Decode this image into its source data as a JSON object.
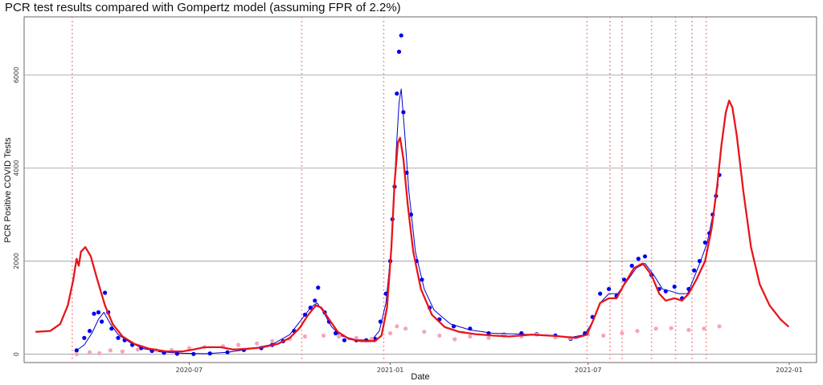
{
  "chart_data": {
    "type": "line",
    "title": "PCR test results compared with Gompertz model (assuming FPR of 2.2%)",
    "xlabel": "Date",
    "ylabel": "PCR Positive COVID Tests",
    "xlim": [
      "2020-02-01",
      "2022-01-26"
    ],
    "ylim": [
      -180,
      7250
    ],
    "x_ticks": [
      {
        "date": "2020-07-01",
        "label": "2020-07"
      },
      {
        "date": "2021-01-01",
        "label": "2021-01"
      },
      {
        "date": "2021-07-01",
        "label": "2021-07"
      },
      {
        "date": "2022-01-01",
        "label": "2022-01"
      }
    ],
    "y_ticks": [
      0,
      2000,
      4000,
      6000
    ],
    "grid": "horizontal",
    "legend": "none",
    "vlines": {
      "color": "#ee7a7a",
      "style": "dotted",
      "dates": [
        "2020-03-16",
        "2020-10-12",
        "2020-12-26",
        "2021-06-30",
        "2021-07-21",
        "2021-08-01",
        "2021-08-28",
        "2021-09-19",
        "2021-10-04",
        "2021-10-17"
      ]
    },
    "series": [
      {
        "kind": "points",
        "color": "#0000ee",
        "data": [
          [
            "2020-03-20",
            80
          ],
          [
            "2020-03-27",
            350
          ],
          [
            "2020-04-01",
            500
          ],
          [
            "2020-04-05",
            870
          ],
          [
            "2020-04-09",
            900
          ],
          [
            "2020-04-12",
            700
          ],
          [
            "2020-04-15",
            1320
          ],
          [
            "2020-04-18",
            900
          ],
          [
            "2020-04-21",
            550
          ],
          [
            "2020-04-27",
            350
          ],
          [
            "2020-05-03",
            300
          ],
          [
            "2020-05-10",
            200
          ],
          [
            "2020-05-18",
            130
          ],
          [
            "2020-05-28",
            70
          ],
          [
            "2020-06-08",
            30
          ],
          [
            "2020-06-20",
            10
          ],
          [
            "2020-07-05",
            5
          ],
          [
            "2020-07-20",
            15
          ],
          [
            "2020-08-05",
            40
          ],
          [
            "2020-08-20",
            90
          ],
          [
            "2020-09-05",
            130
          ],
          [
            "2020-09-15",
            200
          ],
          [
            "2020-09-25",
            280
          ],
          [
            "2020-10-05",
            500
          ],
          [
            "2020-10-15",
            850
          ],
          [
            "2020-10-20",
            1000
          ],
          [
            "2020-10-24",
            1150
          ],
          [
            "2020-10-27",
            1430
          ],
          [
            "2020-11-02",
            900
          ],
          [
            "2020-11-06",
            700
          ],
          [
            "2020-11-12",
            450
          ],
          [
            "2020-11-20",
            300
          ],
          [
            "2020-12-01",
            300
          ],
          [
            "2020-12-10",
            300
          ],
          [
            "2020-12-18",
            330
          ],
          [
            "2020-12-23",
            700
          ],
          [
            "2020-12-28",
            1300
          ],
          [
            "2021-01-01",
            2000
          ],
          [
            "2021-01-03",
            2900
          ],
          [
            "2021-01-05",
            3600
          ],
          [
            "2021-01-07",
            5600
          ],
          [
            "2021-01-09",
            6500
          ],
          [
            "2021-01-11",
            6850
          ],
          [
            "2021-01-13",
            5200
          ],
          [
            "2021-01-16",
            3900
          ],
          [
            "2021-01-20",
            3000
          ],
          [
            "2021-01-25",
            2000
          ],
          [
            "2021-01-30",
            1600
          ],
          [
            "2021-02-06",
            1000
          ],
          [
            "2021-02-15",
            750
          ],
          [
            "2021-02-28",
            600
          ],
          [
            "2021-03-15",
            550
          ],
          [
            "2021-04-01",
            450
          ],
          [
            "2021-04-15",
            420
          ],
          [
            "2021-05-01",
            450
          ],
          [
            "2021-05-15",
            430
          ],
          [
            "2021-06-01",
            400
          ],
          [
            "2021-06-15",
            330
          ],
          [
            "2021-06-28",
            450
          ],
          [
            "2021-07-05",
            800
          ],
          [
            "2021-07-12",
            1300
          ],
          [
            "2021-07-20",
            1400
          ],
          [
            "2021-07-27",
            1250
          ],
          [
            "2021-08-03",
            1600
          ],
          [
            "2021-08-10",
            1900
          ],
          [
            "2021-08-16",
            2050
          ],
          [
            "2021-08-22",
            2100
          ],
          [
            "2021-08-28",
            1700
          ],
          [
            "2021-09-04",
            1400
          ],
          [
            "2021-09-10",
            1350
          ],
          [
            "2021-09-18",
            1450
          ],
          [
            "2021-09-25",
            1200
          ],
          [
            "2021-10-01",
            1400
          ],
          [
            "2021-10-06",
            1800
          ],
          [
            "2021-10-11",
            2000
          ],
          [
            "2021-10-16",
            2400
          ],
          [
            "2021-10-20",
            2600
          ],
          [
            "2021-10-23",
            3000
          ],
          [
            "2021-10-26",
            3400
          ],
          [
            "2021-10-29",
            3850
          ]
        ]
      },
      {
        "kind": "line",
        "color": "#0000cc",
        "width": 1,
        "data": [
          [
            "2020-03-20",
            80
          ],
          [
            "2020-03-27",
            200
          ],
          [
            "2020-04-03",
            450
          ],
          [
            "2020-04-09",
            750
          ],
          [
            "2020-04-14",
            900
          ],
          [
            "2020-04-20",
            650
          ],
          [
            "2020-04-27",
            420
          ],
          [
            "2020-05-08",
            250
          ],
          [
            "2020-05-20",
            120
          ],
          [
            "2020-06-05",
            50
          ],
          [
            "2020-06-25",
            20
          ],
          [
            "2020-07-15",
            10
          ],
          [
            "2020-08-05",
            40
          ],
          [
            "2020-08-25",
            110
          ],
          [
            "2020-09-15",
            210
          ],
          [
            "2020-10-01",
            420
          ],
          [
            "2020-10-12",
            750
          ],
          [
            "2020-10-20",
            1000
          ],
          [
            "2020-10-26",
            1100
          ],
          [
            "2020-11-01",
            900
          ],
          [
            "2020-11-08",
            600
          ],
          [
            "2020-11-16",
            400
          ],
          [
            "2020-12-01",
            310
          ],
          [
            "2020-12-15",
            300
          ],
          [
            "2020-12-22",
            500
          ],
          [
            "2020-12-28",
            1100
          ],
          [
            "2021-01-02",
            2300
          ],
          [
            "2021-01-06",
            4200
          ],
          [
            "2021-01-09",
            5400
          ],
          [
            "2021-01-11",
            5700
          ],
          [
            "2021-01-14",
            4800
          ],
          [
            "2021-01-18",
            3500
          ],
          [
            "2021-01-24",
            2200
          ],
          [
            "2021-02-01",
            1400
          ],
          [
            "2021-02-10",
            950
          ],
          [
            "2021-02-25",
            650
          ],
          [
            "2021-03-15",
            520
          ],
          [
            "2021-04-05",
            450
          ],
          [
            "2021-05-01",
            430
          ],
          [
            "2021-05-25",
            410
          ],
          [
            "2021-06-15",
            360
          ],
          [
            "2021-06-28",
            420
          ],
          [
            "2021-07-05",
            700
          ],
          [
            "2021-07-12",
            1100
          ],
          [
            "2021-07-20",
            1300
          ],
          [
            "2021-07-28",
            1300
          ],
          [
            "2021-08-05",
            1550
          ],
          [
            "2021-08-14",
            1850
          ],
          [
            "2021-08-22",
            1950
          ],
          [
            "2021-08-30",
            1700
          ],
          [
            "2021-09-07",
            1400
          ],
          [
            "2021-09-15",
            1350
          ],
          [
            "2021-09-22",
            1300
          ],
          [
            "2021-09-30",
            1300
          ],
          [
            "2021-10-06",
            1650
          ],
          [
            "2021-10-12",
            2000
          ],
          [
            "2021-10-18",
            2400
          ],
          [
            "2021-10-24",
            3100
          ],
          [
            "2021-10-28",
            3650
          ]
        ]
      },
      {
        "kind": "points",
        "color": "#f4a6b8",
        "data": [
          [
            "2020-03-20",
            0
          ],
          [
            "2020-04-01",
            40
          ],
          [
            "2020-04-10",
            20
          ],
          [
            "2020-04-20",
            80
          ],
          [
            "2020-05-01",
            60
          ],
          [
            "2020-05-15",
            100
          ],
          [
            "2020-06-01",
            80
          ],
          [
            "2020-06-15",
            90
          ],
          [
            "2020-07-01",
            130
          ],
          [
            "2020-07-15",
            150
          ],
          [
            "2020-08-01",
            170
          ],
          [
            "2020-08-15",
            200
          ],
          [
            "2020-09-01",
            230
          ],
          [
            "2020-09-15",
            280
          ],
          [
            "2020-10-01",
            330
          ],
          [
            "2020-10-15",
            380
          ],
          [
            "2020-11-01",
            400
          ],
          [
            "2020-11-15",
            380
          ],
          [
            "2020-12-01",
            350
          ],
          [
            "2020-12-15",
            330
          ],
          [
            "2021-01-01",
            450
          ],
          [
            "2021-01-07",
            600
          ],
          [
            "2021-01-15",
            550
          ],
          [
            "2021-02-01",
            480
          ],
          [
            "2021-02-15",
            400
          ],
          [
            "2021-03-01",
            320
          ],
          [
            "2021-03-15",
            380
          ],
          [
            "2021-04-01",
            350
          ],
          [
            "2021-04-15",
            400
          ],
          [
            "2021-05-01",
            380
          ],
          [
            "2021-05-15",
            420
          ],
          [
            "2021-06-01",
            360
          ],
          [
            "2021-06-15",
            350
          ],
          [
            "2021-07-01",
            420
          ],
          [
            "2021-07-15",
            400
          ],
          [
            "2021-08-01",
            450
          ],
          [
            "2021-08-15",
            500
          ],
          [
            "2021-09-01",
            550
          ],
          [
            "2021-09-15",
            560
          ],
          [
            "2021-10-01",
            520
          ],
          [
            "2021-10-15",
            550
          ],
          [
            "2021-10-29",
            600
          ]
        ]
      },
      {
        "kind": "line",
        "color": "#e8151b",
        "width": 2.3,
        "data": [
          [
            "2020-02-12",
            480
          ],
          [
            "2020-02-25",
            500
          ],
          [
            "2020-03-05",
            650
          ],
          [
            "2020-03-12",
            1050
          ],
          [
            "2020-03-17",
            1600
          ],
          [
            "2020-03-20",
            2050
          ],
          [
            "2020-03-22",
            1900
          ],
          [
            "2020-03-24",
            2200
          ],
          [
            "2020-03-28",
            2300
          ],
          [
            "2020-04-02",
            2100
          ],
          [
            "2020-04-08",
            1600
          ],
          [
            "2020-04-15",
            1050
          ],
          [
            "2020-04-22",
            650
          ],
          [
            "2020-05-01",
            380
          ],
          [
            "2020-05-12",
            220
          ],
          [
            "2020-05-25",
            120
          ],
          [
            "2020-06-10",
            60
          ],
          [
            "2020-06-25",
            60
          ],
          [
            "2020-07-05",
            100
          ],
          [
            "2020-07-15",
            150
          ],
          [
            "2020-07-30",
            150
          ],
          [
            "2020-08-10",
            100
          ],
          [
            "2020-08-20",
            110
          ],
          [
            "2020-09-05",
            140
          ],
          [
            "2020-09-20",
            220
          ],
          [
            "2020-10-01",
            350
          ],
          [
            "2020-10-10",
            560
          ],
          [
            "2020-10-18",
            850
          ],
          [
            "2020-10-25",
            1050
          ],
          [
            "2020-10-30",
            1000
          ],
          [
            "2020-11-06",
            750
          ],
          [
            "2020-11-14",
            480
          ],
          [
            "2020-11-24",
            330
          ],
          [
            "2020-12-05",
            280
          ],
          [
            "2020-12-18",
            280
          ],
          [
            "2020-12-24",
            400
          ],
          [
            "2020-12-29",
            1000
          ],
          [
            "2021-01-02",
            2300
          ],
          [
            "2021-01-05",
            3700
          ],
          [
            "2021-01-08",
            4550
          ],
          [
            "2021-01-10",
            4650
          ],
          [
            "2021-01-13",
            4200
          ],
          [
            "2021-01-17",
            3200
          ],
          [
            "2021-01-22",
            2200
          ],
          [
            "2021-01-29",
            1400
          ],
          [
            "2021-02-08",
            850
          ],
          [
            "2021-02-20",
            580
          ],
          [
            "2021-03-05",
            480
          ],
          [
            "2021-03-20",
            430
          ],
          [
            "2021-04-05",
            400
          ],
          [
            "2021-04-20",
            380
          ],
          [
            "2021-05-10",
            420
          ],
          [
            "2021-06-01",
            390
          ],
          [
            "2021-06-20",
            350
          ],
          [
            "2021-06-30",
            420
          ],
          [
            "2021-07-06",
            750
          ],
          [
            "2021-07-12",
            1100
          ],
          [
            "2021-07-20",
            1200
          ],
          [
            "2021-07-27",
            1200
          ],
          [
            "2021-08-03",
            1500
          ],
          [
            "2021-08-12",
            1850
          ],
          [
            "2021-08-20",
            1950
          ],
          [
            "2021-08-28",
            1700
          ],
          [
            "2021-09-04",
            1300
          ],
          [
            "2021-09-10",
            1150
          ],
          [
            "2021-09-18",
            1200
          ],
          [
            "2021-09-25",
            1150
          ],
          [
            "2021-10-01",
            1300
          ],
          [
            "2021-10-08",
            1600
          ],
          [
            "2021-10-16",
            2000
          ],
          [
            "2021-10-22",
            2700
          ],
          [
            "2021-10-27",
            3600
          ],
          [
            "2021-10-31",
            4500
          ],
          [
            "2021-11-04",
            5200
          ],
          [
            "2021-11-07",
            5450
          ],
          [
            "2021-11-10",
            5300
          ],
          [
            "2021-11-14",
            4700
          ],
          [
            "2021-11-20",
            3500
          ],
          [
            "2021-11-27",
            2300
          ],
          [
            "2021-12-05",
            1500
          ],
          [
            "2021-12-14",
            1050
          ],
          [
            "2021-12-24",
            750
          ],
          [
            "2021-12-31",
            600
          ]
        ]
      }
    ]
  }
}
